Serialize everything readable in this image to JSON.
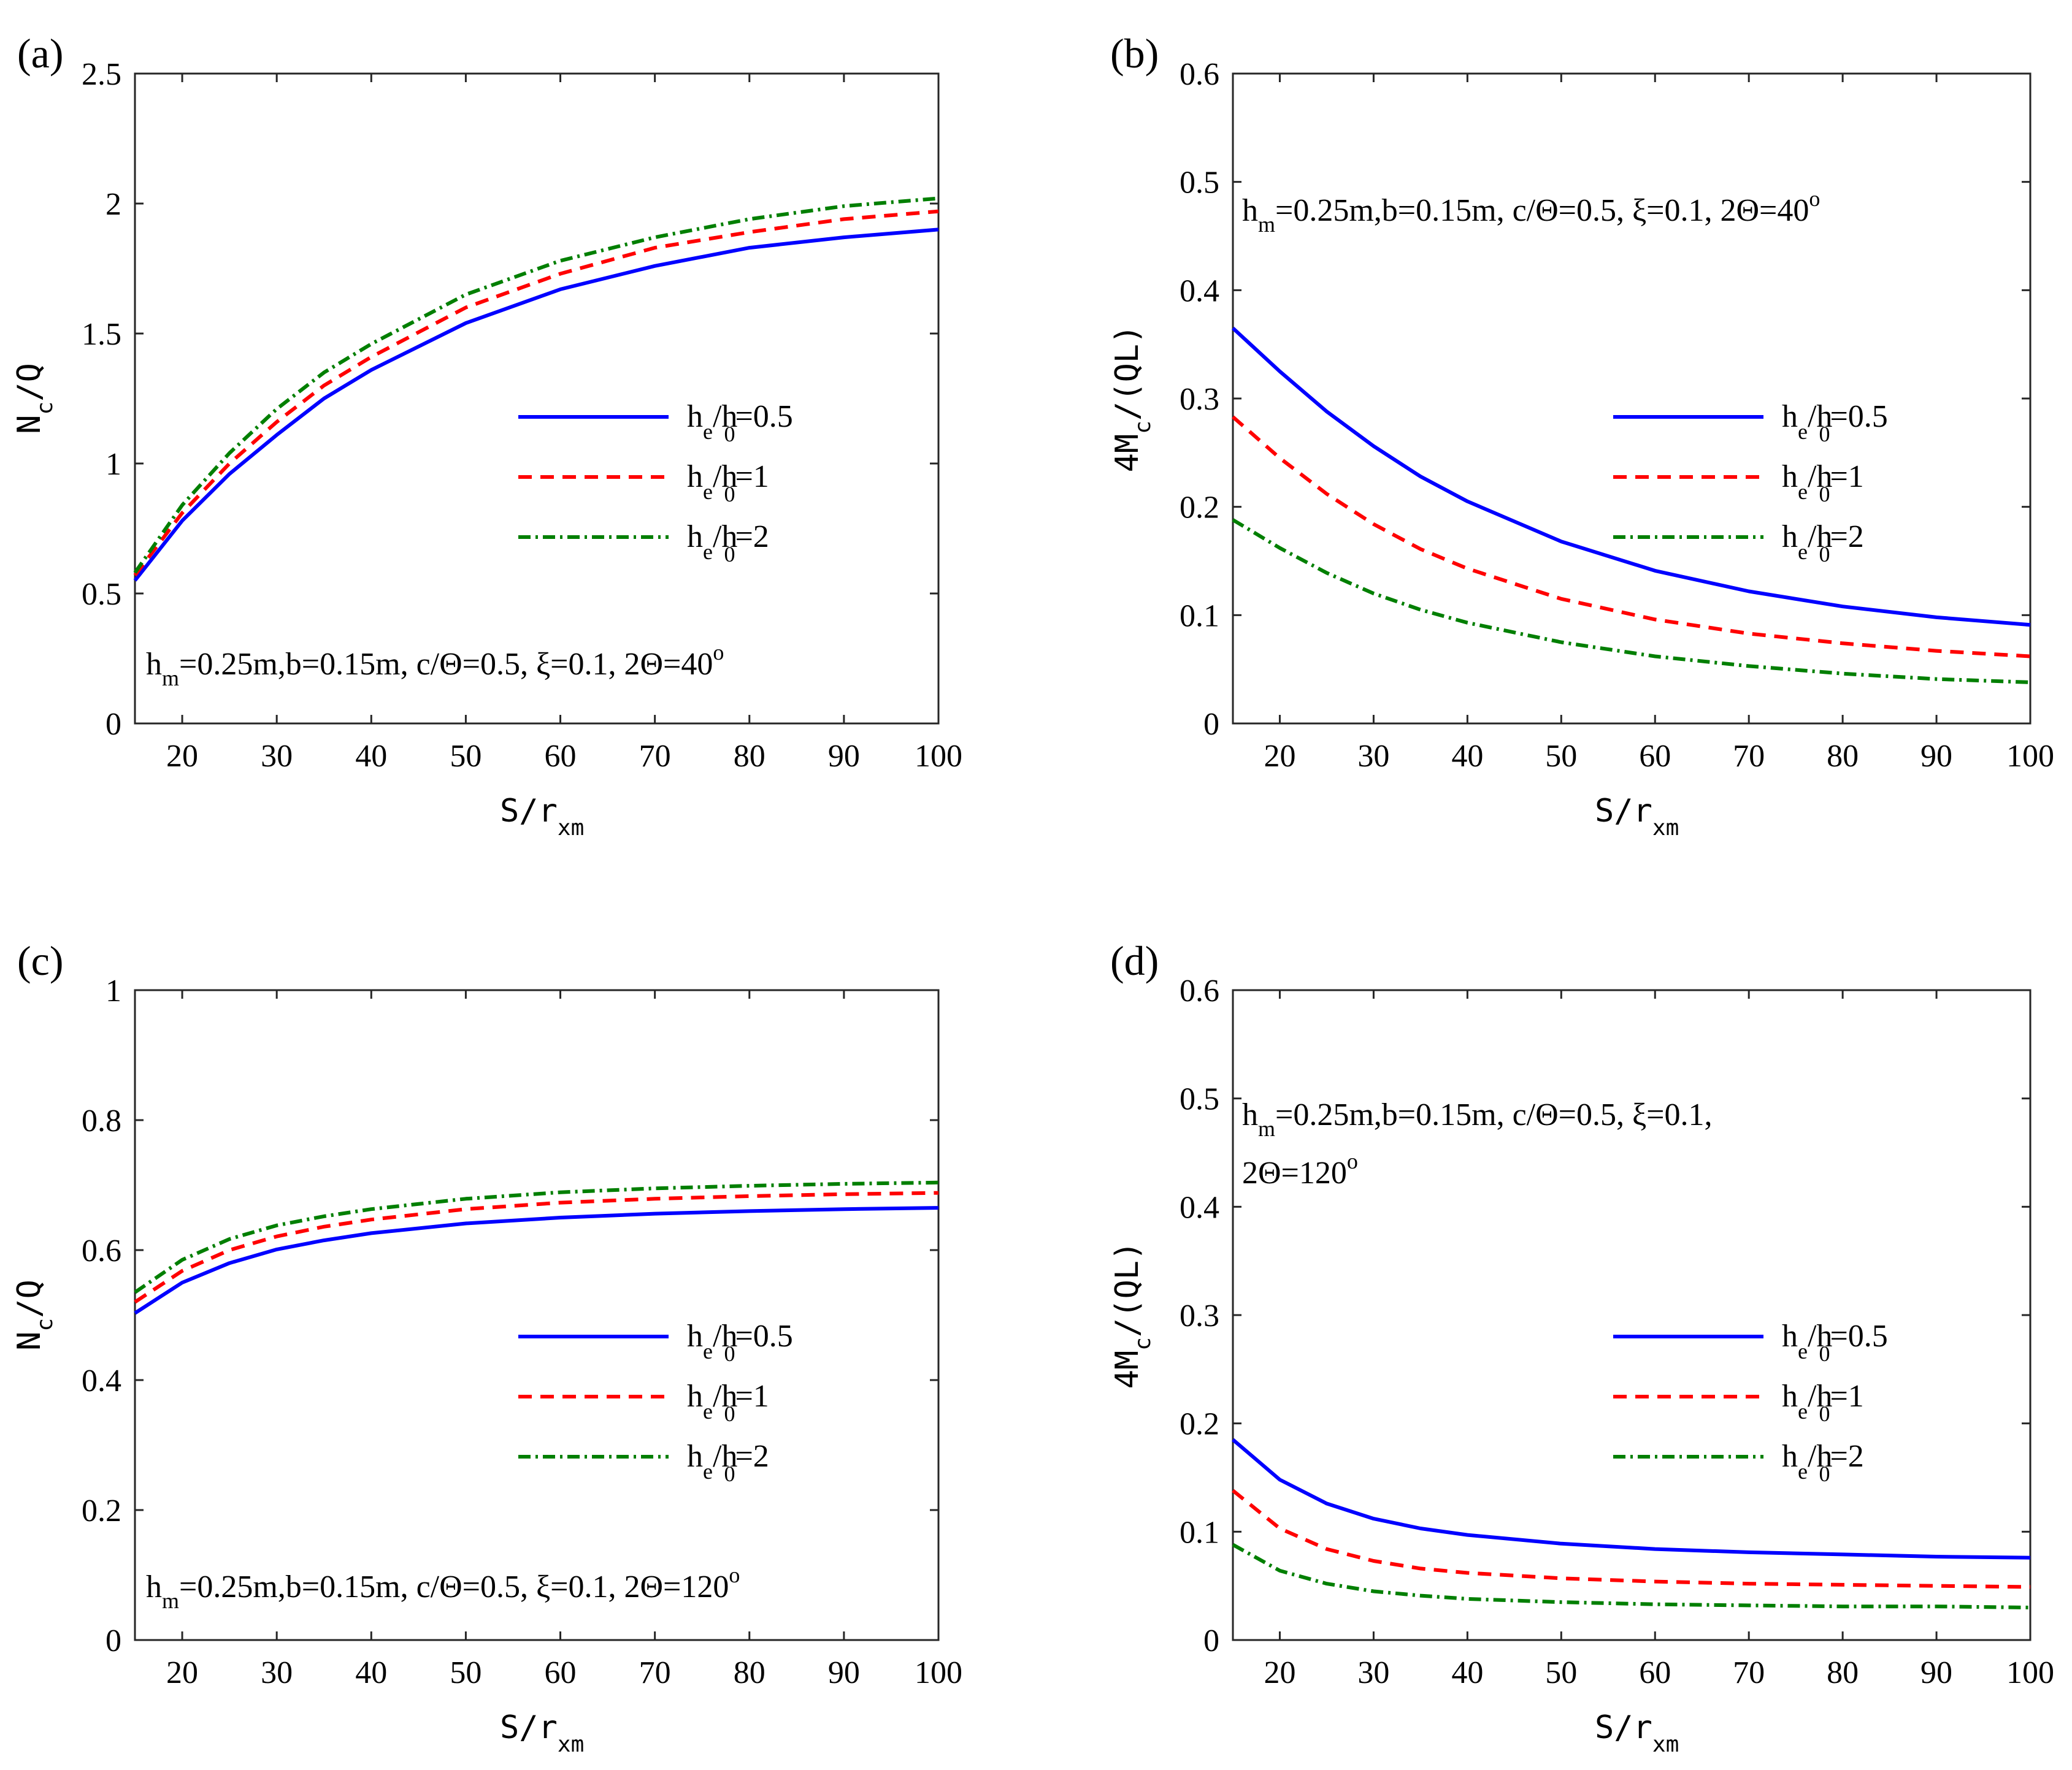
{
  "colors": {
    "blue": "#0000ff",
    "red": "#ff0000",
    "green": "#007f00",
    "axis": "#262626"
  },
  "legend_entries": [
    {
      "base": "h",
      "sub1": "e",
      "mid": "/h",
      "sub2": "0",
      "tail": "=0.5",
      "style": "solid",
      "color": "#0000ff"
    },
    {
      "base": "h",
      "sub1": "e",
      "mid": "/h",
      "sub2": "0",
      "tail": "=1",
      "style": "dashed",
      "color": "#ff0000"
    },
    {
      "base": "h",
      "sub1": "e",
      "mid": "/h",
      "sub2": "0",
      "tail": "=2",
      "style": "dashdot",
      "color": "#007f00"
    }
  ],
  "chart_data": [
    {
      "panel": "(a)",
      "type": "line",
      "xlabel": {
        "base": "S/r",
        "sub": "xm"
      },
      "ylabel": {
        "base": "N",
        "sub": "c",
        "tail": "/Q"
      },
      "xlim": [
        15,
        100
      ],
      "ylim": [
        0,
        2.5
      ],
      "xticks": [
        "20",
        "30",
        "40",
        "50",
        "60",
        "70",
        "80",
        "90",
        "100"
      ],
      "yticks": [
        "0",
        "0.5",
        "1",
        "1.5",
        "2",
        "2.5"
      ],
      "annotation": {
        "line1": [
          "h",
          "m",
          "=0.25m,b=0.15m, c/Θ=0.5, ξ=0.1, 2Θ=40",
          "o"
        ],
        "line2": null
      },
      "x": [
        15,
        20,
        25,
        30,
        35,
        40,
        50,
        60,
        70,
        80,
        90,
        100
      ],
      "series": [
        {
          "name": "h_e/h_0=0.5",
          "values": [
            0.55,
            0.78,
            0.96,
            1.11,
            1.25,
            1.36,
            1.54,
            1.67,
            1.76,
            1.83,
            1.87,
            1.9
          ]
        },
        {
          "name": "h_e/h_0=1",
          "values": [
            0.57,
            0.81,
            1.0,
            1.16,
            1.3,
            1.41,
            1.6,
            1.73,
            1.83,
            1.89,
            1.94,
            1.97
          ]
        },
        {
          "name": "h_e/h_0=2",
          "values": [
            0.58,
            0.84,
            1.04,
            1.21,
            1.35,
            1.46,
            1.65,
            1.78,
            1.87,
            1.94,
            1.99,
            2.02
          ]
        }
      ]
    },
    {
      "panel": "(b)",
      "type": "line",
      "xlabel": {
        "base": "S/r",
        "sub": "xm"
      },
      "ylabel": {
        "base": "4M",
        "sub": "c",
        "tail": "/(QL)"
      },
      "xlim": [
        15,
        100
      ],
      "ylim": [
        0,
        0.6
      ],
      "xticks": [
        "20",
        "30",
        "40",
        "50",
        "60",
        "70",
        "80",
        "90",
        "100"
      ],
      "yticks": [
        "0",
        "0.1",
        "0.2",
        "0.3",
        "0.4",
        "0.5",
        "0.6"
      ],
      "annotation": {
        "line1": [
          "h",
          "m",
          "=0.25m,b=0.15m, c/Θ=0.5, ξ=0.1, 2Θ=40",
          "o"
        ],
        "line2": null
      },
      "x": [
        15,
        20,
        25,
        30,
        35,
        40,
        50,
        60,
        70,
        80,
        90,
        100
      ],
      "series": [
        {
          "name": "h_e/h_0=0.5",
          "values": [
            0.365,
            0.325,
            0.288,
            0.256,
            0.228,
            0.205,
            0.168,
            0.141,
            0.122,
            0.108,
            0.098,
            0.091
          ]
        },
        {
          "name": "h_e/h_0=1",
          "values": [
            0.283,
            0.245,
            0.212,
            0.184,
            0.161,
            0.143,
            0.115,
            0.096,
            0.083,
            0.074,
            0.067,
            0.062
          ]
        },
        {
          "name": "h_e/h_0=2",
          "values": [
            0.188,
            0.162,
            0.139,
            0.12,
            0.105,
            0.093,
            0.075,
            0.062,
            0.053,
            0.046,
            0.041,
            0.038
          ]
        }
      ]
    },
    {
      "panel": "(c)",
      "type": "line",
      "xlabel": {
        "base": "S/r",
        "sub": "xm"
      },
      "ylabel": {
        "base": "N",
        "sub": "c",
        "tail": "/Q"
      },
      "xlim": [
        15,
        100
      ],
      "ylim": [
        0,
        1
      ],
      "xticks": [
        "20",
        "30",
        "40",
        "50",
        "60",
        "70",
        "80",
        "90",
        "100"
      ],
      "yticks": [
        "0",
        "0.2",
        "0.4",
        "0.6",
        "0.8",
        "1"
      ],
      "annotation": {
        "line1": [
          "h",
          "m",
          "=0.25m,b=0.15m, c/Θ=0.5, ξ=0.1, 2Θ=120",
          "o"
        ],
        "line2": null
      },
      "x": [
        15,
        20,
        25,
        30,
        35,
        40,
        50,
        60,
        70,
        80,
        90,
        100
      ],
      "series": [
        {
          "name": "h_e/h_0=0.5",
          "values": [
            0.503,
            0.55,
            0.58,
            0.601,
            0.615,
            0.626,
            0.641,
            0.65,
            0.656,
            0.66,
            0.663,
            0.665
          ]
        },
        {
          "name": "h_e/h_0=1",
          "values": [
            0.52,
            0.568,
            0.6,
            0.621,
            0.636,
            0.647,
            0.663,
            0.673,
            0.679,
            0.683,
            0.686,
            0.688
          ]
        },
        {
          "name": "h_e/h_0=2",
          "values": [
            0.535,
            0.585,
            0.617,
            0.638,
            0.652,
            0.663,
            0.679,
            0.689,
            0.695,
            0.699,
            0.702,
            0.704
          ]
        }
      ]
    },
    {
      "panel": "(d)",
      "type": "line",
      "xlabel": {
        "base": "S/r",
        "sub": "xm"
      },
      "ylabel": {
        "base": "4M",
        "sub": "c",
        "tail": "/(QL)"
      },
      "xlim": [
        15,
        100
      ],
      "ylim": [
        0,
        0.6
      ],
      "xticks": [
        "20",
        "30",
        "40",
        "50",
        "60",
        "70",
        "80",
        "90",
        "100"
      ],
      "yticks": [
        "0",
        "0.1",
        "0.2",
        "0.3",
        "0.4",
        "0.5",
        "0.6"
      ],
      "annotation": {
        "line1": [
          "h",
          "m",
          "=0.25m,b=0.15m, c/Θ=0.5, ξ=0.1,",
          ""
        ],
        "line2": [
          "2Θ=120",
          "o"
        ]
      },
      "x": [
        15,
        20,
        25,
        30,
        35,
        40,
        50,
        60,
        70,
        80,
        90,
        100
      ],
      "series": [
        {
          "name": "h_e/h_0=0.5",
          "values": [
            0.185,
            0.148,
            0.126,
            0.112,
            0.103,
            0.097,
            0.089,
            0.084,
            0.081,
            0.079,
            0.077,
            0.076
          ]
        },
        {
          "name": "h_e/h_0=1",
          "values": [
            0.138,
            0.103,
            0.084,
            0.073,
            0.066,
            0.062,
            0.057,
            0.054,
            0.052,
            0.051,
            0.05,
            0.049
          ]
        },
        {
          "name": "h_e/h_0=2",
          "values": [
            0.088,
            0.064,
            0.052,
            0.045,
            0.041,
            0.038,
            0.035,
            0.033,
            0.032,
            0.031,
            0.031,
            0.03
          ]
        }
      ]
    }
  ]
}
